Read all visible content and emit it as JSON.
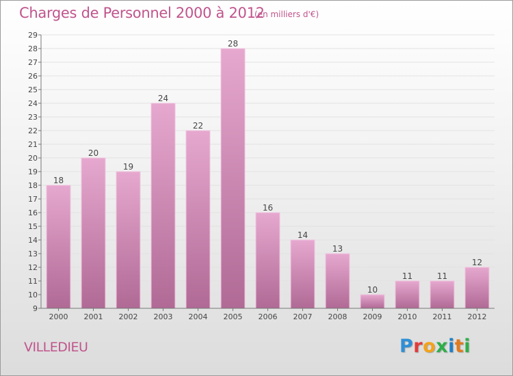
{
  "title": "Charges de Personnel 2000 à 2012",
  "subtitle": "(en milliers d'€)",
  "commune": "VILLEDIEU",
  "logo": {
    "letters": [
      "P",
      "r",
      "o",
      "x",
      "i",
      "t",
      "i"
    ],
    "colors": [
      "#2f8fd6",
      "#e23b3b",
      "#f3a21b",
      "#2fae4a",
      "#1f7fc8",
      "#e07a1f",
      "#2fae4a"
    ]
  },
  "colors": {
    "bar_top": "#e6a8cf",
    "bar_bottom": "#b06a95",
    "text_accent": "#c0548c"
  },
  "chart_data": {
    "type": "bar",
    "title": "Charges de Personnel 2000 à 2012",
    "subtitle": "(en milliers d'€)",
    "categories": [
      "2000",
      "2001",
      "2002",
      "2003",
      "2004",
      "2005",
      "2006",
      "2007",
      "2008",
      "2009",
      "2010",
      "2011",
      "2012"
    ],
    "values": [
      18,
      20,
      19,
      24,
      22,
      28,
      16,
      14,
      13,
      10,
      11,
      11,
      12
    ],
    "ylim": [
      9,
      29
    ],
    "yticks": [
      9,
      10,
      11,
      12,
      13,
      14,
      15,
      16,
      17,
      18,
      19,
      20,
      21,
      22,
      23,
      24,
      25,
      26,
      27,
      28,
      29
    ],
    "grid": true,
    "legend": "none",
    "data_labels": true
  }
}
